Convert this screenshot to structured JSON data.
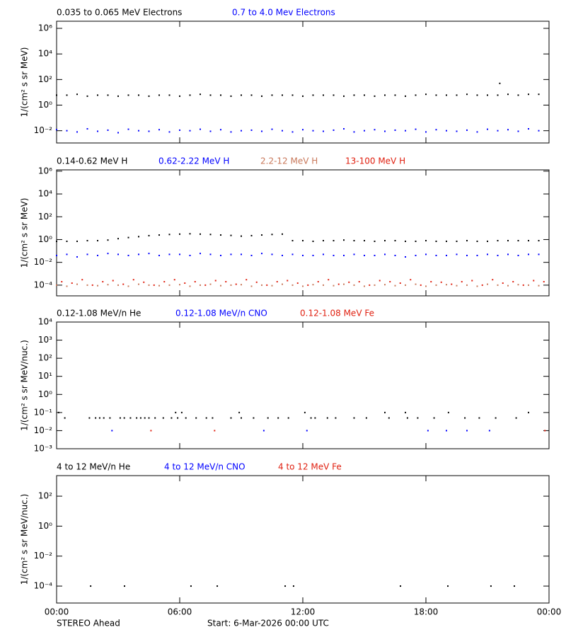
{
  "chart_data": [
    {
      "type": "scatter",
      "log_y": true,
      "ylabel": "1/(cm² s sr MeV)",
      "xlim": [
        0,
        24
      ],
      "xticks": [
        0,
        6,
        12,
        18,
        24
      ],
      "ylim": [
        0.0011,
        3600000
      ],
      "yticks": [
        {
          "value": 0.01,
          "label": "10⁻²"
        },
        {
          "value": 1,
          "label": "10⁰"
        },
        {
          "value": 100,
          "label": "10²"
        },
        {
          "value": 10000,
          "label": "10⁴"
        },
        {
          "value": 1000000,
          "label": "10⁶"
        }
      ],
      "series": [
        {
          "name": "0.035 to 0.065 MeV Electrons",
          "color": "#000000",
          "x": [
            0,
            0.5,
            1,
            1.5,
            2,
            2.5,
            3,
            3.5,
            4,
            4.5,
            5,
            5.5,
            6,
            6.5,
            7,
            7.5,
            8,
            8.5,
            9,
            9.5,
            10,
            10.5,
            11,
            11.5,
            12,
            12.5,
            13,
            13.5,
            14,
            14.5,
            15,
            15.5,
            16,
            16.5,
            17,
            17.5,
            18,
            18.5,
            19,
            19.5,
            20,
            20.5,
            21,
            21.5,
            22,
            22.5,
            23,
            23.5,
            21.6
          ],
          "values": [
            6,
            6,
            7,
            5,
            6,
            6,
            5,
            6,
            6,
            5,
            6,
            6,
            5,
            6,
            7,
            6,
            6,
            5,
            6,
            6,
            5,
            6,
            6,
            6,
            5,
            6,
            6,
            6,
            5,
            6,
            6,
            5,
            6,
            6,
            5,
            6,
            7,
            6,
            6,
            6,
            7,
            6,
            6,
            6,
            7,
            6,
            7,
            7,
            50
          ]
        },
        {
          "name": "0.7 to 4.0 Mev Electrons",
          "color": "#0000ff",
          "x": [
            0,
            0.5,
            1,
            1.5,
            2,
            2.5,
            3,
            3.5,
            4,
            4.5,
            5,
            5.5,
            6,
            6.5,
            7,
            7.5,
            8,
            8.5,
            9,
            9.5,
            10,
            10.5,
            11,
            11.5,
            12,
            12.5,
            13,
            13.5,
            14,
            14.5,
            15,
            15.5,
            16,
            16.5,
            17,
            17.5,
            18,
            18.5,
            19,
            19.5,
            20,
            20.5,
            21,
            21.5,
            22,
            22.5,
            23,
            23.5
          ],
          "values": [
            0.012,
            0.01,
            0.008,
            0.014,
            0.009,
            0.011,
            0.007,
            0.013,
            0.01,
            0.009,
            0.012,
            0.008,
            0.011,
            0.01,
            0.013,
            0.009,
            0.012,
            0.008,
            0.01,
            0.011,
            0.009,
            0.013,
            0.01,
            0.008,
            0.012,
            0.01,
            0.009,
            0.011,
            0.014,
            0.008,
            0.01,
            0.012,
            0.009,
            0.011,
            0.01,
            0.013,
            0.008,
            0.012,
            0.01,
            0.009,
            0.011,
            0.008,
            0.013,
            0.01,
            0.012,
            0.009,
            0.014,
            0.01
          ]
        }
      ]
    },
    {
      "type": "scatter",
      "log_y": true,
      "ylabel": "1/(cm² s sr MeV)",
      "xlim": [
        0,
        24
      ],
      "xticks": [
        0,
        6,
        12,
        18,
        24
      ],
      "ylim": [
        1.15e-05,
        1300000
      ],
      "yticks": [
        {
          "value": 0.0001,
          "label": "10⁻⁴"
        },
        {
          "value": 0.01,
          "label": "10⁻²"
        },
        {
          "value": 1,
          "label": "10⁰"
        },
        {
          "value": 100,
          "label": "10²"
        },
        {
          "value": 10000,
          "label": "10⁴"
        },
        {
          "value": 1000000,
          "label": "10⁶"
        }
      ],
      "series": [
        {
          "name": "0.14-0.62 MeV H",
          "color": "#000000",
          "x": [
            0,
            0.5,
            1,
            1.5,
            2,
            2.5,
            3,
            3.5,
            4,
            4.5,
            5,
            5.5,
            6,
            6.5,
            7,
            7.5,
            8,
            8.5,
            9,
            9.5,
            10,
            10.5,
            11,
            11.5,
            12,
            12.5,
            13,
            13.5,
            14,
            14.5,
            15,
            15.5,
            16,
            16.5,
            17,
            17.5,
            18,
            18.5,
            19,
            19.5,
            20,
            20.5,
            21,
            21.5,
            22,
            22.5,
            23,
            23.5
          ],
          "values": [
            0.7,
            0.7,
            0.7,
            0.8,
            0.8,
            0.9,
            1.2,
            1.5,
            1.8,
            2.2,
            2.5,
            2.8,
            3.0,
            3.2,
            3.0,
            2.8,
            2.5,
            2.3,
            2.0,
            2.2,
            2.5,
            2.8,
            3.0,
            0.8,
            0.8,
            0.7,
            0.8,
            0.8,
            0.9,
            0.8,
            0.8,
            0.7,
            0.8,
            0.8,
            0.7,
            0.7,
            0.8,
            0.7,
            0.7,
            0.7,
            0.8,
            0.7,
            0.7,
            0.8,
            0.8,
            0.8,
            0.8,
            0.8
          ]
        },
        {
          "name": "0.62-2.22 MeV H",
          "color": "#0000ff",
          "x": [
            0,
            0.5,
            1,
            1.5,
            2,
            2.5,
            3,
            3.5,
            4,
            4.5,
            5,
            5.5,
            6,
            6.5,
            7,
            7.5,
            8,
            8.5,
            9,
            9.5,
            10,
            10.5,
            11,
            11.5,
            12,
            12.5,
            13,
            13.5,
            14,
            14.5,
            15,
            15.5,
            16,
            16.5,
            17,
            17.5,
            18,
            18.5,
            19,
            19.5,
            20,
            20.5,
            21,
            21.5,
            22,
            22.5,
            23,
            23.5
          ],
          "values": [
            0.04,
            0.05,
            0.03,
            0.05,
            0.04,
            0.06,
            0.05,
            0.04,
            0.05,
            0.06,
            0.04,
            0.05,
            0.05,
            0.04,
            0.06,
            0.05,
            0.04,
            0.05,
            0.05,
            0.04,
            0.06,
            0.05,
            0.04,
            0.05,
            0.04,
            0.04,
            0.05,
            0.04,
            0.04,
            0.05,
            0.04,
            0.04,
            0.05,
            0.04,
            0.03,
            0.04,
            0.05,
            0.04,
            0.04,
            0.05,
            0.04,
            0.04,
            0.05,
            0.04,
            0.05,
            0.04,
            0.05,
            0.05
          ]
        },
        {
          "name": "2.2-12 MeV H",
          "color": "#c8785a",
          "x": [
            0,
            0.5,
            1,
            1.5,
            2,
            2.5,
            3,
            3.5,
            4,
            4.5,
            5,
            5.5,
            6,
            6.5,
            7,
            7.5,
            8,
            8.5,
            9,
            9.5,
            10,
            10.5,
            11,
            11.5,
            12,
            12.5,
            13,
            13.5,
            14,
            14.5,
            15,
            15.5,
            16,
            16.5,
            17,
            17.5,
            18,
            18.5,
            19,
            19.5,
            20,
            20.5,
            21,
            21.5,
            22,
            22.5,
            23,
            23.5
          ],
          "values": [
            0.0001,
            8e-05,
            0.00012,
            0.0001,
            9e-05,
            0.00011,
            0.0001,
            8e-05,
            0.00012,
            0.0001,
            9e-05,
            0.0001,
            0.00011,
            8e-05,
            0.0001,
            0.00012,
            9e-05,
            0.0001,
            0.00011,
            8e-05,
            0.0001,
            9e-05,
            0.00012,
            0.0001,
            8e-05,
            0.00011,
            0.0001,
            9e-05,
            0.00012,
            0.0001,
            8e-05,
            0.0001,
            0.00011,
            9e-05,
            0.0001,
            0.00012,
            8e-05,
            0.0001,
            0.00011,
            9e-05,
            0.0001,
            8e-05,
            0.00012,
            0.0001,
            9e-05,
            0.00011,
            0.0001,
            9e-05
          ]
        },
        {
          "name": "13-100 MeV H",
          "color": "#e02010",
          "x": [
            0.25,
            0.75,
            1.25,
            1.75,
            2.25,
            2.75,
            3.25,
            3.75,
            4.25,
            4.75,
            5.25,
            5.75,
            6.25,
            6.75,
            7.25,
            7.75,
            8.25,
            8.75,
            9.25,
            9.75,
            10.25,
            10.75,
            11.25,
            11.75,
            12.25,
            12.75,
            13.25,
            13.75,
            14.25,
            14.75,
            15.25,
            15.75,
            16.25,
            16.75,
            17.25,
            17.75,
            18.25,
            18.75,
            19.25,
            19.75,
            20.25,
            20.75,
            21.25,
            21.75,
            22.25,
            22.75,
            23.25,
            23.75
          ],
          "values": [
            0.0002,
            0.00015,
            0.0003,
            0.0001,
            0.0002,
            0.00025,
            0.00012,
            0.0003,
            0.00018,
            0.0001,
            0.0002,
            0.0003,
            0.00015,
            0.0002,
            0.0001,
            0.00025,
            0.0002,
            0.00012,
            0.0003,
            0.00018,
            0.0001,
            0.0002,
            0.00025,
            0.00015,
            0.0001,
            0.0002,
            0.0003,
            0.00012,
            0.00018,
            0.0002,
            0.0001,
            0.00025,
            0.0002,
            0.00015,
            0.0003,
            0.0001,
            0.0002,
            0.00018,
            0.00012,
            0.0002,
            0.00025,
            0.0001,
            0.0003,
            0.00015,
            0.0002,
            0.0001,
            0.00025,
            0.0002
          ]
        }
      ]
    },
    {
      "type": "scatter",
      "log_y": true,
      "ylabel": "1/(cm² s sr MeV/nuc.)",
      "xlim": [
        0,
        24
      ],
      "xticks": [
        0,
        6,
        12,
        18,
        24
      ],
      "ylim": [
        0.001,
        10000
      ],
      "yticks": [
        {
          "value": 0.001,
          "label": "10⁻³"
        },
        {
          "value": 0.01,
          "label": "10⁻²"
        },
        {
          "value": 0.1,
          "label": "10⁻¹"
        },
        {
          "value": 1,
          "label": "10⁰"
        },
        {
          "value": 10,
          "label": "10¹"
        },
        {
          "value": 100,
          "label": "10²"
        },
        {
          "value": 1000,
          "label": "10³"
        },
        {
          "value": 10000,
          "label": "10⁴"
        }
      ],
      "series": [
        {
          "name": "0.12-1.08 MeV/n He",
          "color": "#000000",
          "x": [
            0.1,
            0.4,
            1.6,
            1.9,
            2.1,
            2.3,
            2.6,
            3.1,
            3.3,
            3.6,
            3.9,
            4.1,
            4.3,
            4.5,
            4.8,
            5.2,
            5.6,
            5.8,
            5.9,
            6.1,
            6.3,
            6.8,
            7.3,
            7.6,
            8.5,
            8.9,
            9.0,
            9.6,
            10.3,
            10.8,
            11.3,
            12.1,
            12.4,
            12.6,
            13.2,
            13.6,
            14.5,
            15.1,
            16.0,
            16.2,
            17.0,
            17.1,
            17.6,
            18.4,
            19.1,
            19.9,
            20.6,
            21.4,
            22.4,
            23.0
          ],
          "values": [
            0.1,
            0.05,
            0.05,
            0.05,
            0.05,
            0.05,
            0.05,
            0.05,
            0.05,
            0.05,
            0.05,
            0.05,
            0.05,
            0.05,
            0.05,
            0.05,
            0.05,
            0.1,
            0.05,
            0.1,
            0.05,
            0.05,
            0.05,
            0.05,
            0.05,
            0.1,
            0.05,
            0.05,
            0.05,
            0.05,
            0.05,
            0.1,
            0.05,
            0.05,
            0.05,
            0.05,
            0.05,
            0.05,
            0.1,
            0.05,
            0.1,
            0.05,
            0.05,
            0.05,
            0.1,
            0.05,
            0.05,
            0.05,
            0.05,
            0.1
          ]
        },
        {
          "name": "0.12-1.08 MeV/n CNO",
          "color": "#0000ff",
          "x": [
            2.7,
            10.1,
            12.2,
            18.1,
            19.0,
            20.0,
            21.1
          ],
          "values": [
            0.01,
            0.01,
            0.01,
            0.01,
            0.01,
            0.01,
            0.01
          ]
        },
        {
          "name": "0.12-1.08 MeV Fe",
          "color": "#e02010",
          "x": [
            4.6,
            7.7,
            23.8
          ],
          "values": [
            0.01,
            0.01,
            0.01
          ]
        }
      ]
    },
    {
      "type": "scatter",
      "log_y": true,
      "ylabel": "1/(cm² s sr MeV/nuc.)",
      "xlim": [
        0,
        24
      ],
      "xticks": [
        {
          "value": 0,
          "label": "00:00"
        },
        {
          "value": 6,
          "label": "06:00"
        },
        {
          "value": 12,
          "label": "12:00"
        },
        {
          "value": 18,
          "label": "18:00"
        },
        {
          "value": 24,
          "label": "00:00"
        }
      ],
      "ylim": [
        7.4e-06,
        2350
      ],
      "yticks": [
        {
          "value": 0.0001,
          "label": "10⁻⁴"
        },
        {
          "value": 0.01,
          "label": "10⁻²"
        },
        {
          "value": 1,
          "label": "10⁰"
        },
        {
          "value": 100,
          "label": "10²"
        }
      ],
      "series": [
        {
          "name": "4 to 12 MeV/n He",
          "color": "#000000",
          "x": [
            1.66,
            3.31,
            6.55,
            7.83,
            11.14,
            11.55,
            16.76,
            19.07,
            21.17,
            22.31
          ],
          "values": [
            0.0001,
            0.0001,
            0.0001,
            0.0001,
            0.0001,
            0.0001,
            0.0001,
            0.0001,
            0.0001,
            0.0001
          ]
        },
        {
          "name": "4 to 12 MeV/n CNO",
          "color": "#0000ff",
          "x": [],
          "values": []
        },
        {
          "name": "4 to 12 MeV Fe",
          "color": "#e02010",
          "x": [],
          "values": []
        }
      ]
    }
  ],
  "footer": {
    "mission": "STEREO Ahead",
    "start": "Start:  6-Mar-2026 00:00 UTC"
  }
}
